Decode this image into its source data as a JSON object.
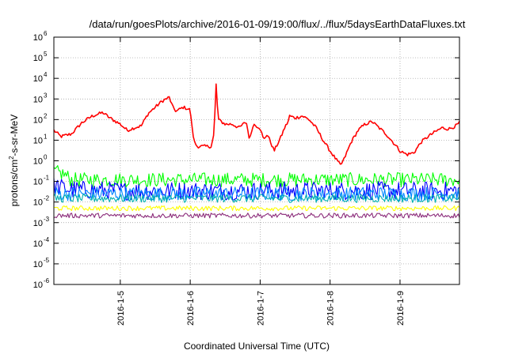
{
  "chart_data": {
    "type": "line",
    "title": "/data/run/goesPlots/archive/2016-01-09/19:00/flux/../flux/5daysEarthDataFluxes.txt",
    "xlabel": "Coordinated Universal Time (UTC)",
    "ylabel": {
      "prefix": "protons/cm",
      "sup": "2",
      "suffix": "-s-sr-MeV"
    },
    "x_tick_labels": [
      "2016-1-5",
      "2016-1-6",
      "2016-1-7",
      "2016-1-8",
      "2016-1-9"
    ],
    "x_ticks_days": [
      5,
      6,
      7,
      8,
      9
    ],
    "xlim_days": [
      4.05,
      9.85
    ],
    "y_scale": "log",
    "ylim": [
      1e-06,
      1000000.0
    ],
    "y_ticks": [
      {
        "base": "10",
        "exp": "6",
        "value": 1000000.0
      },
      {
        "base": "10",
        "exp": "5",
        "value": 100000.0
      },
      {
        "base": "10",
        "exp": "4",
        "value": 10000.0
      },
      {
        "base": "10",
        "exp": "3",
        "value": 1000.0
      },
      {
        "base": "10",
        "exp": "2",
        "value": 100.0
      },
      {
        "base": "10",
        "exp": "1",
        "value": 10.0
      },
      {
        "base": "10",
        "exp": "0",
        "value": 1.0
      },
      {
        "base": "10",
        "exp": "-1",
        "value": 0.1
      },
      {
        "base": "10",
        "exp": "-2",
        "value": 0.01
      },
      {
        "base": "10",
        "exp": "-3",
        "value": 0.001
      },
      {
        "base": "10",
        "exp": "-4",
        "value": 0.0001
      },
      {
        "base": "10",
        "exp": "-5",
        "value": 1e-05
      },
      {
        "base": "10",
        "exp": "-6",
        "value": 1e-06
      }
    ],
    "grid": true,
    "series": [
      {
        "color": "#ff0000",
        "noise": 0.08,
        "x": [
          4.05,
          4.15,
          4.3,
          4.45,
          4.6,
          4.75,
          4.85,
          5.0,
          5.1,
          5.2,
          5.3,
          5.4,
          5.5,
          5.6,
          5.7,
          5.75,
          5.8,
          5.9,
          6.0,
          6.03,
          6.06,
          6.1,
          6.2,
          6.3,
          6.34,
          6.37,
          6.4,
          6.5,
          6.6,
          6.7,
          6.8,
          6.85,
          6.9,
          7.0,
          7.05,
          7.1,
          7.15,
          7.2,
          7.3,
          7.35,
          7.4,
          7.42,
          7.5,
          7.6,
          7.7,
          7.8,
          7.9,
          8.0,
          8.1,
          8.15,
          8.2,
          8.3,
          8.4,
          8.5,
          8.6,
          8.7,
          8.8,
          8.95,
          9.0,
          9.1,
          9.2,
          9.3,
          9.4,
          9.5,
          9.6,
          9.7,
          9.8,
          9.85
        ],
        "y": [
          30,
          15,
          20,
          70,
          150,
          220,
          120,
          60,
          30,
          40,
          50,
          200,
          400,
          800,
          1200,
          400,
          250,
          400,
          300,
          30,
          8,
          5,
          5,
          5,
          20,
          5000,
          100,
          60,
          60,
          40,
          80,
          10,
          60,
          40,
          10,
          20,
          8,
          3,
          15,
          40,
          80,
          150,
          120,
          150,
          100,
          40,
          10,
          3,
          1,
          0.6,
          1.2,
          8,
          30,
          60,
          80,
          40,
          20,
          5,
          3,
          2,
          2.5,
          8,
          15,
          25,
          40,
          35,
          50,
          70
        ]
      },
      {
        "color": "#00ff00",
        "noise": 0.35,
        "x": [
          4.05,
          4.2,
          4.3,
          4.6,
          5.5,
          6.5,
          7.5,
          8.5,
          9.5,
          9.85
        ],
        "y": [
          0.3,
          0.22,
          0.12,
          0.12,
          0.12,
          0.12,
          0.12,
          0.12,
          0.12,
          0.12
        ]
      },
      {
        "color": "#0000ff",
        "noise": 0.45,
        "x": [
          4.05,
          4.3,
          5.0,
          6.0,
          7.0,
          8.0,
          9.0,
          9.85
        ],
        "y": [
          0.06,
          0.04,
          0.035,
          0.035,
          0.035,
          0.035,
          0.035,
          0.035
        ]
      },
      {
        "color": "#0088ff",
        "noise": 0.35,
        "x": [
          4.05,
          5.0,
          6.0,
          7.0,
          8.0,
          9.0,
          9.85
        ],
        "y": [
          0.025,
          0.025,
          0.025,
          0.025,
          0.025,
          0.025,
          0.025
        ]
      },
      {
        "color": "#00b0b0",
        "noise": 0.2,
        "x": [
          4.05,
          5.0,
          6.0,
          7.0,
          8.0,
          9.0,
          9.85
        ],
        "y": [
          0.015,
          0.015,
          0.015,
          0.015,
          0.015,
          0.015,
          0.015
        ]
      },
      {
        "color": "#ffff00",
        "noise": 0.12,
        "x": [
          4.05,
          5.0,
          6.0,
          7.0,
          8.0,
          9.0,
          9.85
        ],
        "y": [
          0.005,
          0.005,
          0.005,
          0.005,
          0.005,
          0.005,
          0.005
        ]
      },
      {
        "color": "#8b2b7a",
        "noise": 0.12,
        "x": [
          4.05,
          5.0,
          6.0,
          7.0,
          8.0,
          9.0,
          9.85
        ],
        "y": [
          0.0022,
          0.0022,
          0.0022,
          0.0022,
          0.0022,
          0.0022,
          0.0022
        ]
      }
    ]
  }
}
